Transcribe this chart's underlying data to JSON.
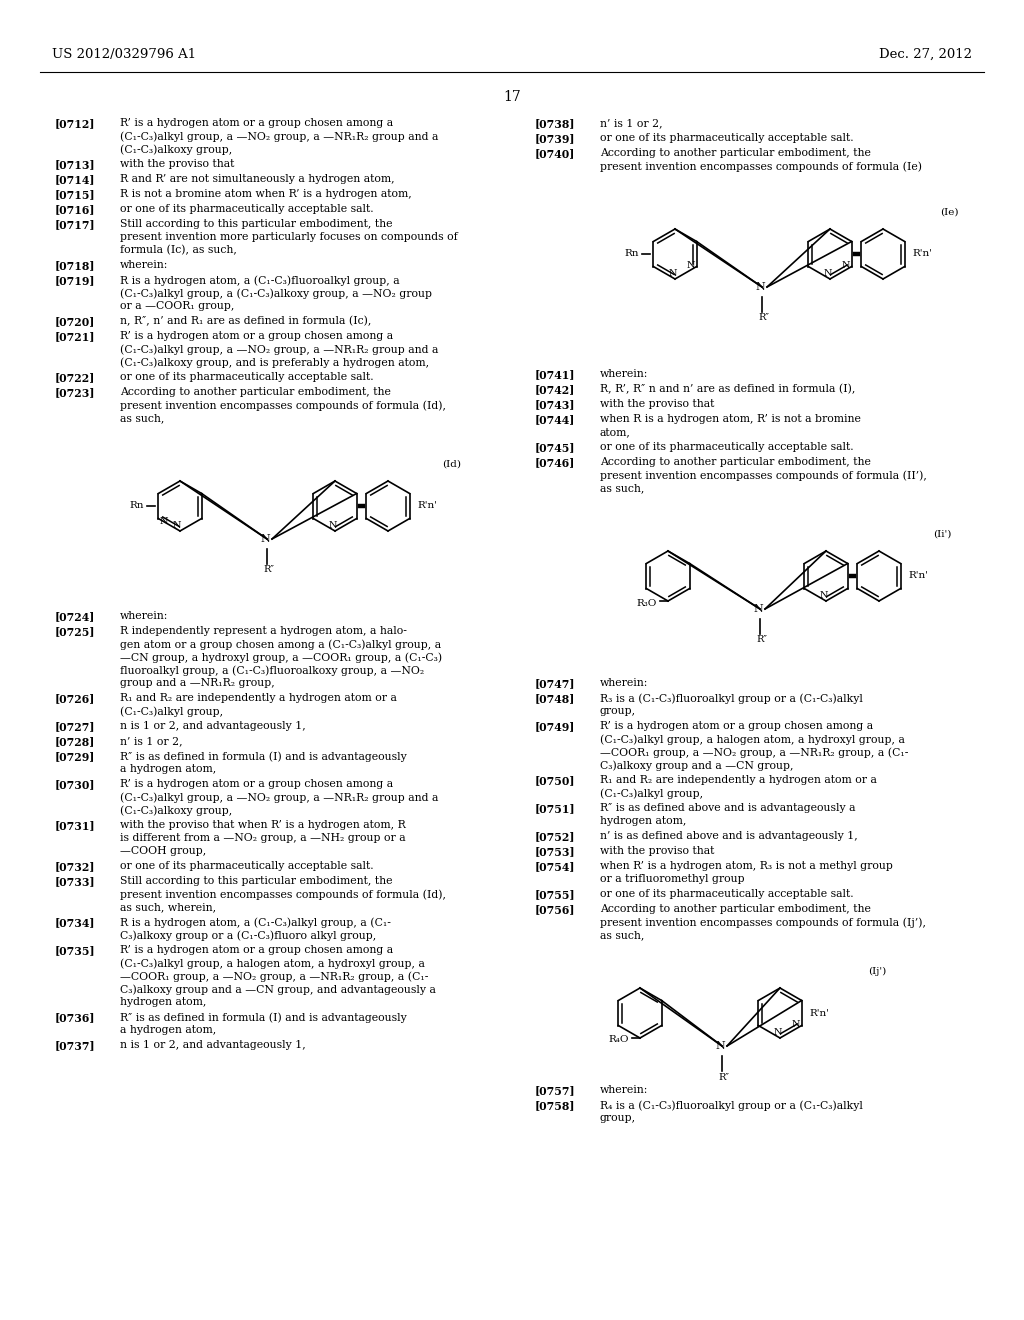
{
  "page_header_left": "US 2012/0329796 A1",
  "page_header_right": "Dec. 27, 2012",
  "page_number": "17",
  "background_color": "#ffffff",
  "text_color": "#000000"
}
